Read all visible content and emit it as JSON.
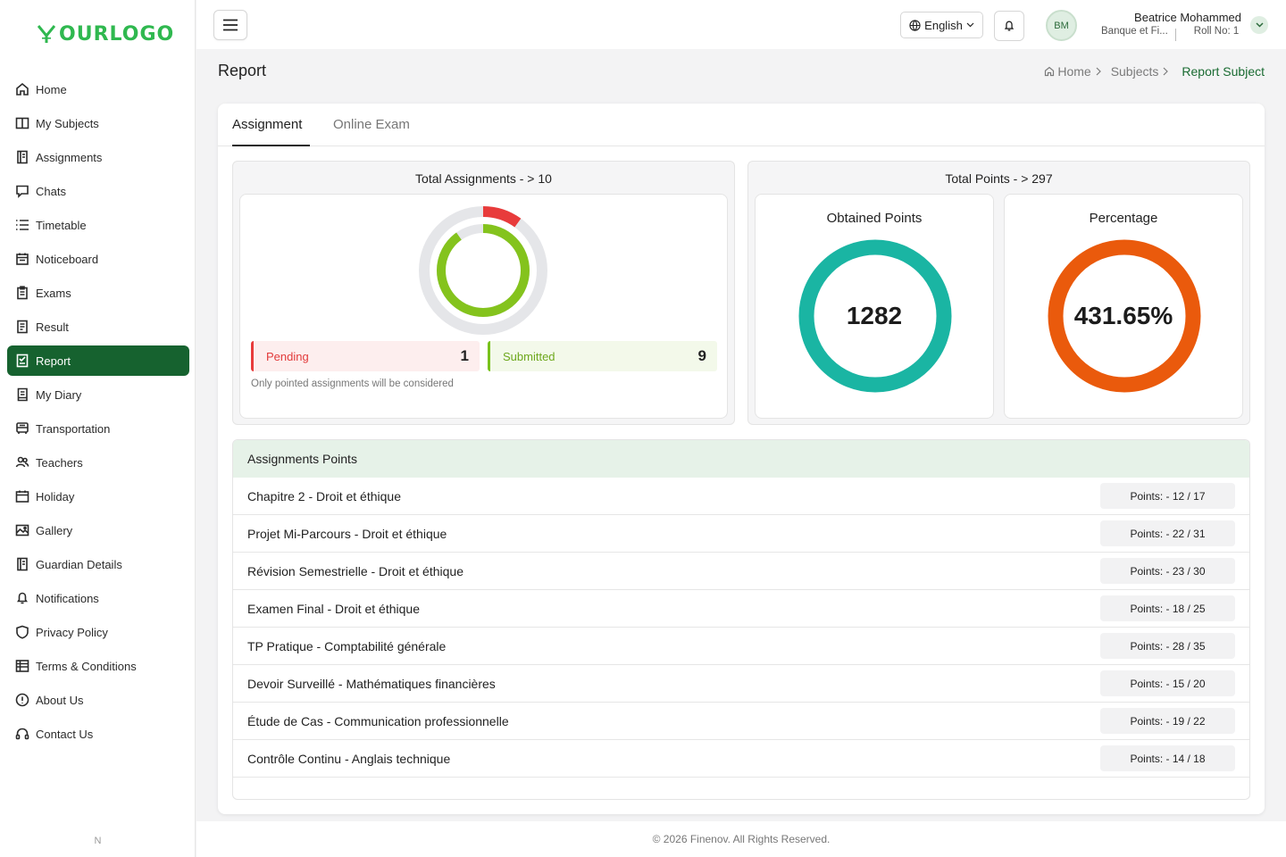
{
  "brand": {
    "logo_text": "OURLOGO"
  },
  "sidebar": {
    "items": [
      {
        "label": "Home",
        "icon": "home-icon"
      },
      {
        "label": "My Subjects",
        "icon": "book-open-icon"
      },
      {
        "label": "Assignments",
        "icon": "book-icon"
      },
      {
        "label": "Chats",
        "icon": "chat-icon"
      },
      {
        "label": "Timetable",
        "icon": "list-icon"
      },
      {
        "label": "Noticeboard",
        "icon": "calendar-board-icon"
      },
      {
        "label": "Exams",
        "icon": "clipboard-icon"
      },
      {
        "label": "Result",
        "icon": "document-icon"
      },
      {
        "label": "Report",
        "icon": "report-icon",
        "active": true
      },
      {
        "label": "My Diary",
        "icon": "diary-icon"
      },
      {
        "label": "Transportation",
        "icon": "bus-icon"
      },
      {
        "label": "Teachers",
        "icon": "users-icon"
      },
      {
        "label": "Holiday",
        "icon": "calendar-icon"
      },
      {
        "label": "Gallery",
        "icon": "image-icon"
      },
      {
        "label": "Guardian Details",
        "icon": "book-icon"
      },
      {
        "label": "Notifications",
        "icon": "bell-icon"
      },
      {
        "label": "Privacy Policy",
        "icon": "shield-icon"
      },
      {
        "label": "Terms & Conditions",
        "icon": "table-icon"
      },
      {
        "label": "About Us",
        "icon": "info-icon"
      },
      {
        "label": "Contact Us",
        "icon": "headset-icon"
      }
    ],
    "footer_text": "N"
  },
  "header": {
    "language": "English",
    "user": {
      "initials": "BM",
      "name": "Beatrice Mohammed",
      "subtitle": "Banque et Fi...",
      "roll": "Roll No: 1"
    }
  },
  "page": {
    "title": "Report",
    "breadcrumb": {
      "home": "Home",
      "subjects": "Subjects",
      "current": "Report Subject"
    }
  },
  "tabs": [
    "Assignment",
    "Online Exam"
  ],
  "summary": {
    "total_assignments_label": "Total Assignments - > 10",
    "pending_label": "Pending",
    "pending_value": "1",
    "submitted_label": "Submitted",
    "submitted_value": "9",
    "note": "Only pointed assignments will be considered",
    "total_points_label": "Total Points - > 297",
    "obtained_label": "Obtained Points",
    "obtained_value": "1282",
    "percentage_label": "Percentage",
    "percentage_value": "431.65%",
    "colors": {
      "pending": "#e83b3b",
      "submitted": "#84c31d",
      "obtained": "#1ab5a3",
      "percentage": "#ea5a0c"
    }
  },
  "points": {
    "title": "Assignments Points",
    "rows": [
      {
        "name": "Chapitre 2 - Droit et éthique",
        "points": "Points: - 12 / 17"
      },
      {
        "name": "Projet Mi-Parcours - Droit et éthique",
        "points": "Points: - 22 / 31"
      },
      {
        "name": "Révision Semestrielle - Droit et éthique",
        "points": "Points: - 23 / 30"
      },
      {
        "name": "Examen Final - Droit et éthique",
        "points": "Points: - 18 / 25"
      },
      {
        "name": "TP Pratique - Comptabilité générale",
        "points": "Points: - 28 / 35"
      },
      {
        "name": "Devoir Surveillé - Mathématiques financières",
        "points": "Points: - 15 / 20"
      },
      {
        "name": "Étude de Cas - Communication professionnelle",
        "points": "Points: - 19 / 22"
      },
      {
        "name": "Contrôle Continu - Anglais technique",
        "points": "Points: - 14 / 18"
      }
    ]
  },
  "footer": {
    "text": "© 2026 Finenov. All Rights Reserved."
  }
}
